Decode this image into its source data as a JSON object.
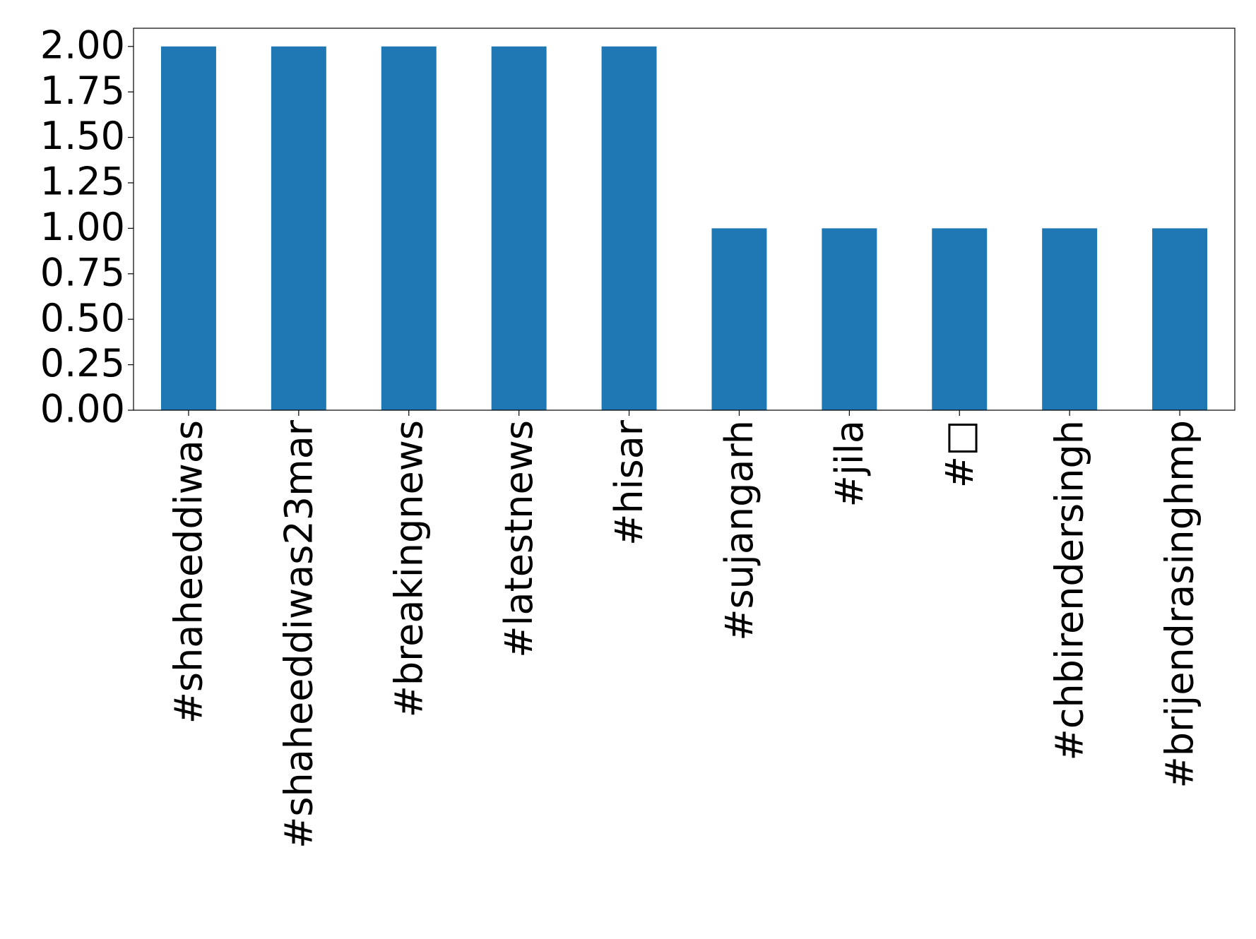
{
  "chart_data": {
    "type": "bar",
    "categories": [
      "#shaheeddiwas",
      "#shaheeddiwas23mar",
      "#breakingnews",
      "#latestnews",
      "#hisar",
      "#sujangarh",
      "#jila",
      "#□",
      "#chbirendersingh",
      "#brijendrasinghmp"
    ],
    "values": [
      2,
      2,
      2,
      2,
      2,
      1,
      1,
      1,
      1,
      1
    ],
    "color": "#1f77b4",
    "ylim": [
      0,
      2.1
    ],
    "yticks": [
      {
        "value": 0,
        "label": "0.00"
      },
      {
        "value": 0.25,
        "label": "0.25"
      },
      {
        "value": 0.5,
        "label": "0.50"
      },
      {
        "value": 0.75,
        "label": "0.75"
      },
      {
        "value": 1,
        "label": "1.00"
      },
      {
        "value": 1.25,
        "label": "1.25"
      },
      {
        "value": 1.5,
        "label": "1.50"
      },
      {
        "value": 1.75,
        "label": "1.75"
      },
      {
        "value": 2,
        "label": "2.00"
      }
    ],
    "grid": false
  }
}
